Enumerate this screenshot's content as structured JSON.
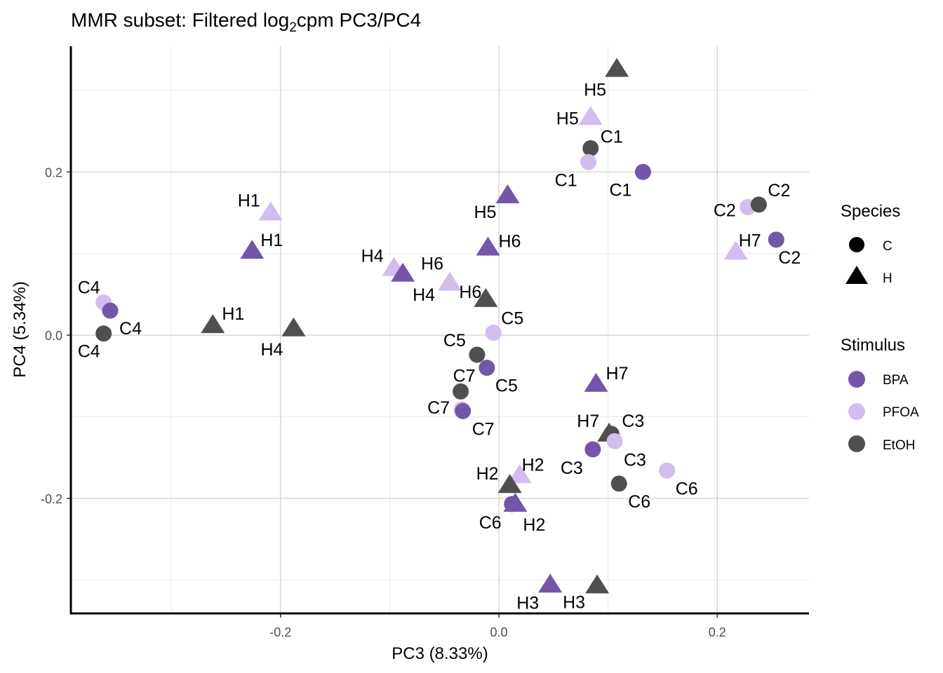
{
  "chart_data": {
    "type": "scatter",
    "title_parts": {
      "pre": "MMR subset: Filtered log",
      "sub": "2",
      "post": "cpm PC3/PC4"
    },
    "xlabel": "PC3 (8.33%)",
    "ylabel": "PC4 (5.34%)",
    "xlim": [
      -0.392,
      0.284
    ],
    "ylim": [
      -0.341,
      0.354
    ],
    "xticks": [
      {
        "v": -0.2,
        "label": "-0.2"
      },
      {
        "v": 0.0,
        "label": "0.0"
      },
      {
        "v": 0.2,
        "label": "0.2"
      }
    ],
    "yticks": [
      {
        "v": -0.2,
        "label": "-0.2"
      },
      {
        "v": 0.0,
        "label": "0.0"
      },
      {
        "v": 0.2,
        "label": "0.2"
      }
    ],
    "grid": true,
    "legend_position": "right",
    "colors": {
      "BPA": "#7356A8",
      "PFOA": "#D3BDEF",
      "EtOH": "#4F4F4F"
    },
    "legend": {
      "species_title": "Species",
      "species": [
        {
          "key": "C",
          "shape": "circle"
        },
        {
          "key": "H",
          "shape": "triangle"
        }
      ],
      "stimulus_title": "Stimulus",
      "stimulus": [
        "BPA",
        "PFOA",
        "EtOH"
      ]
    },
    "points": [
      {
        "label": "H5",
        "species": "H",
        "stimulus": "EtOH",
        "x": 0.108,
        "y": 0.326
      },
      {
        "label": "H5",
        "species": "H",
        "stimulus": "PFOA",
        "x": 0.084,
        "y": 0.267
      },
      {
        "label": "C1",
        "species": "C",
        "stimulus": "EtOH",
        "x": 0.084,
        "y": 0.229
      },
      {
        "label": "C1",
        "species": "C",
        "stimulus": "PFOA",
        "x": 0.082,
        "y": 0.212
      },
      {
        "label": "C1",
        "species": "C",
        "stimulus": "BPA",
        "x": 0.132,
        "y": 0.2
      },
      {
        "label": "C2",
        "species": "C",
        "stimulus": "PFOA",
        "x": 0.228,
        "y": 0.157
      },
      {
        "label": "C2",
        "species": "C",
        "stimulus": "EtOH",
        "x": 0.238,
        "y": 0.16
      },
      {
        "label": "C2",
        "species": "C",
        "stimulus": "BPA",
        "x": 0.254,
        "y": 0.117
      },
      {
        "label": "H7",
        "species": "H",
        "stimulus": "PFOA",
        "x": 0.217,
        "y": 0.102
      },
      {
        "label": "H1",
        "species": "H",
        "stimulus": "PFOA",
        "x": -0.209,
        "y": 0.15
      },
      {
        "label": "H1",
        "species": "H",
        "stimulus": "BPA",
        "x": -0.226,
        "y": 0.103
      },
      {
        "label": "H5",
        "species": "H",
        "stimulus": "BPA",
        "x": 0.008,
        "y": 0.171
      },
      {
        "label": "H6",
        "species": "H",
        "stimulus": "BPA",
        "x": -0.01,
        "y": 0.107
      },
      {
        "label": "H4",
        "species": "H",
        "stimulus": "PFOA",
        "x": -0.096,
        "y": 0.082
      },
      {
        "label": "H4",
        "species": "H",
        "stimulus": "BPA",
        "x": -0.088,
        "y": 0.075
      },
      {
        "label": "H6",
        "species": "H",
        "stimulus": "PFOA",
        "x": -0.045,
        "y": 0.064
      },
      {
        "label": "H6",
        "species": "H",
        "stimulus": "EtOH",
        "x": -0.012,
        "y": 0.044
      },
      {
        "label": "C4",
        "species": "C",
        "stimulus": "PFOA",
        "x": -0.362,
        "y": 0.04
      },
      {
        "label": "C4",
        "species": "C",
        "stimulus": "BPA",
        "x": -0.356,
        "y": 0.03
      },
      {
        "label": "C4",
        "species": "C",
        "stimulus": "EtOH",
        "x": -0.362,
        "y": 0.002
      },
      {
        "label": "H1",
        "species": "H",
        "stimulus": "EtOH",
        "x": -0.262,
        "y": 0.012
      },
      {
        "label": "H4",
        "species": "H",
        "stimulus": "EtOH",
        "x": -0.188,
        "y": 0.008
      },
      {
        "label": "C5",
        "species": "C",
        "stimulus": "PFOA",
        "x": -0.005,
        "y": 0.003
      },
      {
        "label": "C5",
        "species": "C",
        "stimulus": "EtOH",
        "x": -0.02,
        "y": -0.024
      },
      {
        "label": "C5",
        "species": "C",
        "stimulus": "BPA",
        "x": -0.011,
        "y": -0.04
      },
      {
        "label": "C7",
        "species": "C",
        "stimulus": "EtOH",
        "x": -0.035,
        "y": -0.069
      },
      {
        "label": "C7",
        "species": "C",
        "stimulus": "PFOA",
        "x": -0.034,
        "y": -0.091
      },
      {
        "label": "C7",
        "species": "C",
        "stimulus": "BPA",
        "x": -0.033,
        "y": -0.093
      },
      {
        "label": "H7",
        "species": "H",
        "stimulus": "BPA",
        "x": 0.089,
        "y": -0.06
      },
      {
        "label": "H7",
        "species": "H",
        "stimulus": "EtOH",
        "x": 0.101,
        "y": -0.121
      },
      {
        "label": "C3",
        "species": "C",
        "stimulus": "EtOH",
        "x": 0.103,
        "y": -0.121
      },
      {
        "label": "C3",
        "species": "C",
        "stimulus": "PFOA",
        "x": 0.106,
        "y": -0.13
      },
      {
        "label": "C3",
        "species": "C",
        "stimulus": "BPA",
        "x": 0.086,
        "y": -0.14
      },
      {
        "label": "C6",
        "species": "C",
        "stimulus": "PFOA",
        "x": 0.154,
        "y": -0.166
      },
      {
        "label": "C6",
        "species": "C",
        "stimulus": "EtOH",
        "x": 0.11,
        "y": -0.182
      },
      {
        "label": "H2",
        "species": "H",
        "stimulus": "PFOA",
        "x": 0.019,
        "y": -0.172
      },
      {
        "label": "H2",
        "species": "H",
        "stimulus": "EtOH",
        "x": 0.01,
        "y": -0.184
      },
      {
        "label": "H2",
        "species": "H",
        "stimulus": "BPA",
        "x": 0.015,
        "y": -0.207
      },
      {
        "label": "C6",
        "species": "C",
        "stimulus": "BPA",
        "x": 0.012,
        "y": -0.207
      },
      {
        "label": "H3",
        "species": "H",
        "stimulus": "BPA",
        "x": 0.047,
        "y": -0.306
      },
      {
        "label": "H3",
        "species": "H",
        "stimulus": "EtOH",
        "x": 0.09,
        "y": -0.307
      }
    ]
  }
}
